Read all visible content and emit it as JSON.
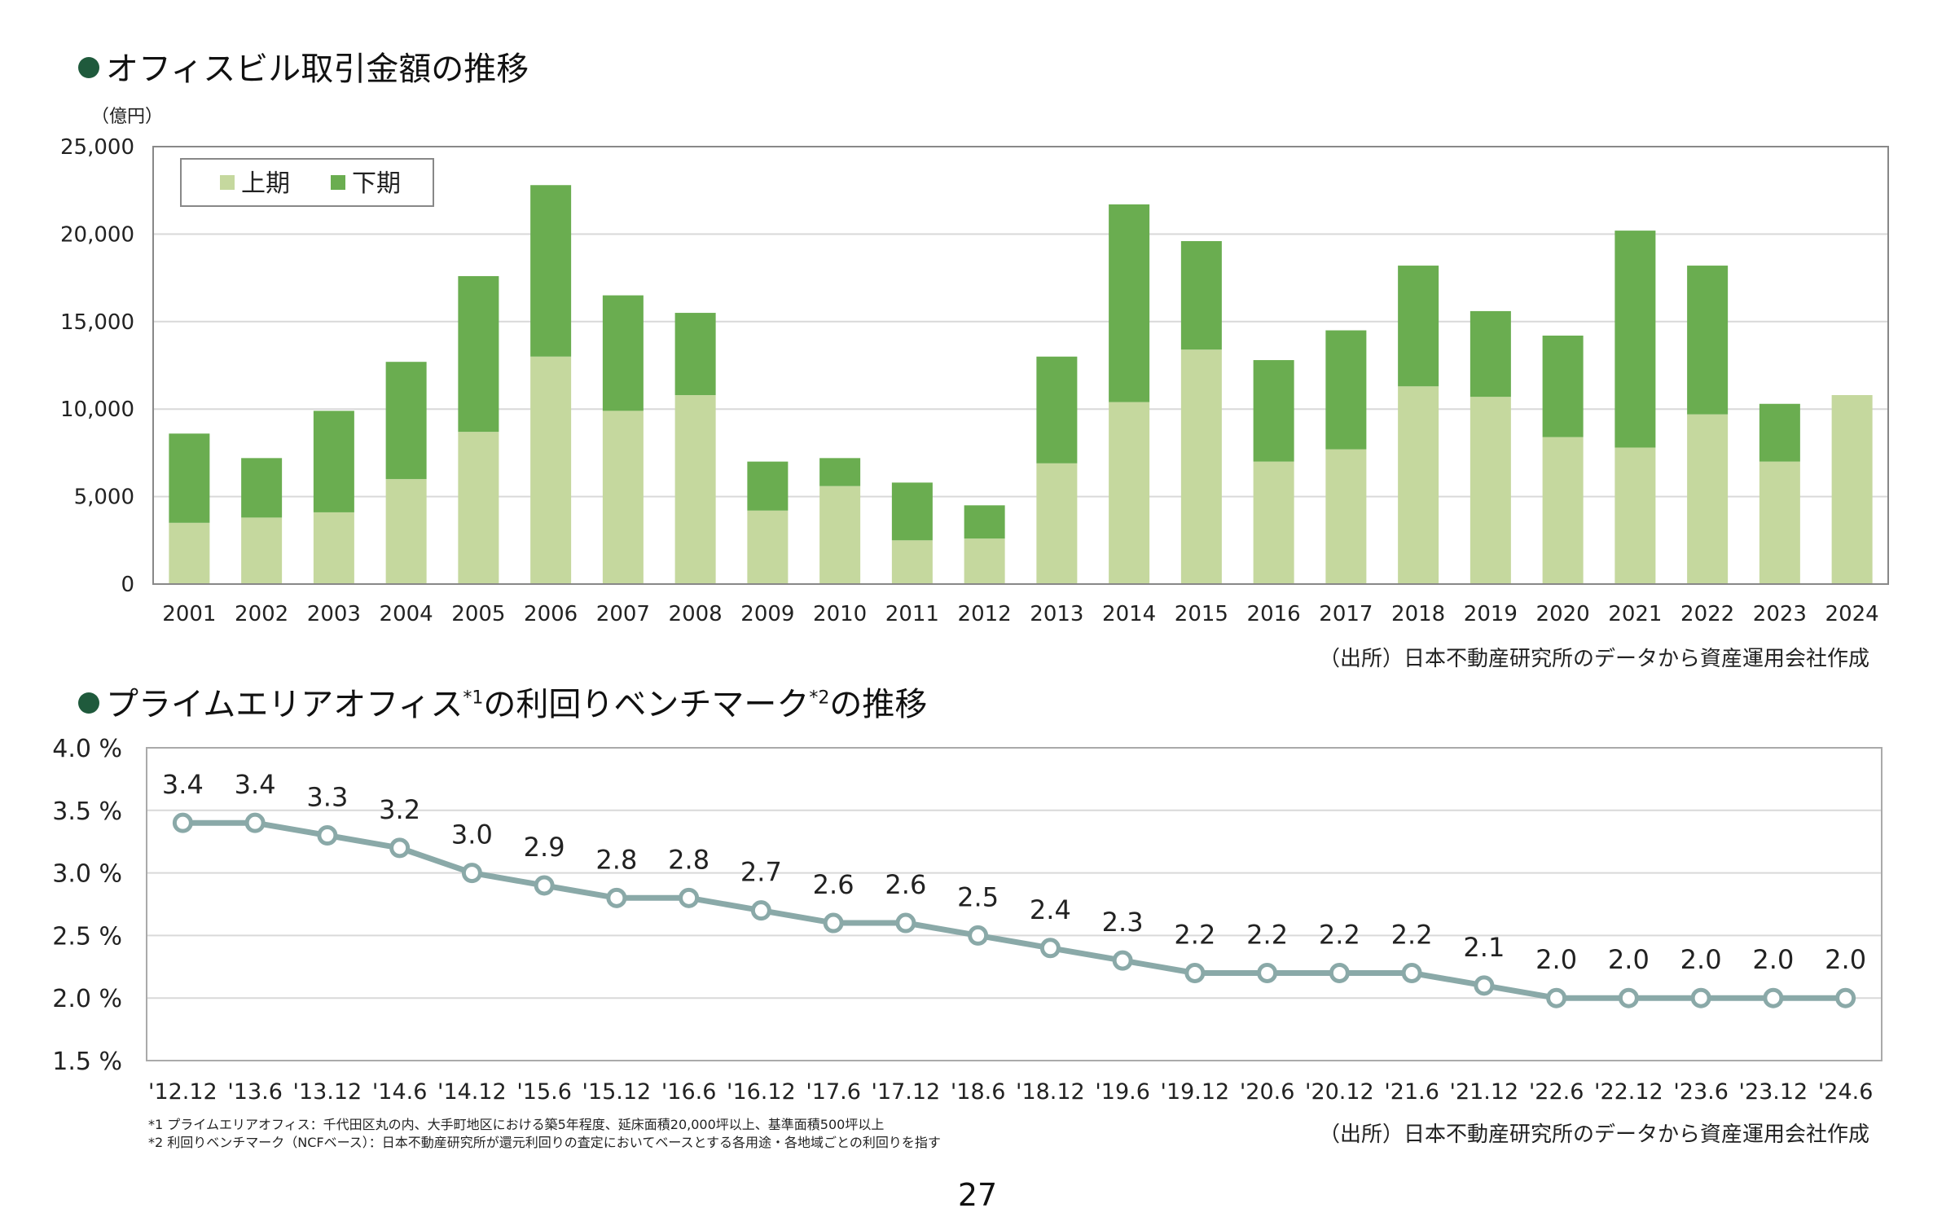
{
  "page_number": "27",
  "section1": {
    "title": "オフィスビル取引金額の推移",
    "unit_label": "（億円）",
    "source": "（出所）日本不動産研究所のデータから資産運用会社作成"
  },
  "section2": {
    "title_main": "プライムエリアオフィス",
    "title_sup1": "*1",
    "title_mid": "の利回りベンチマーク",
    "title_sup2": "*2",
    "title_end": "の推移",
    "source": "（出所）日本不動産研究所のデータから資産運用会社作成",
    "footnote1": "*1 プライムエリアオフィス：千代田区丸の内、大手町地区における築5年程度、延床面積20,000坪以上、基準面積500坪以上",
    "footnote2": "*2 利回りベンチマーク（NCFベース）：日本不動産研究所が還元利回りの査定においてベースとする各用途・各地域ごとの利回りを指す"
  },
  "colors": {
    "first_half": "#c5d89e",
    "second_half": "#6aad50",
    "line": "#8aa9a8",
    "title_dot": "#1f5a3c"
  },
  "chart_data": [
    {
      "type": "bar",
      "stacked": true,
      "categories": [
        "2001",
        "2002",
        "2003",
        "2004",
        "2005",
        "2006",
        "2007",
        "2008",
        "2009",
        "2010",
        "2011",
        "2012",
        "2013",
        "2014",
        "2015",
        "2016",
        "2017",
        "2018",
        "2019",
        "2020",
        "2021",
        "2022",
        "2023",
        "2024"
      ],
      "series": [
        {
          "name": "上期",
          "values": [
            3500,
            3800,
            4100,
            6000,
            8700,
            13000,
            9900,
            10800,
            4200,
            5600,
            2500,
            2600,
            6900,
            10400,
            13400,
            7000,
            7700,
            11300,
            10700,
            8400,
            7800,
            9700,
            7000,
            10800
          ]
        },
        {
          "name": "下期",
          "values": [
            5100,
            3400,
            5800,
            6700,
            8900,
            9800,
            6600,
            4700,
            2800,
            1600,
            3300,
            1900,
            6100,
            11300,
            6200,
            5800,
            6800,
            6900,
            4900,
            5800,
            12400,
            8500,
            3300,
            0
          ]
        }
      ],
      "ylim": [
        0,
        25000
      ],
      "yticks": [
        "0",
        "5,000",
        "10,000",
        "15,000",
        "20,000",
        "25,000"
      ],
      "legend_position": "top-left",
      "grid": true
    },
    {
      "type": "line",
      "categories": [
        "'12.12",
        "'13.6",
        "'13.12",
        "'14.6",
        "'14.12",
        "'15.6",
        "'15.12",
        "'16.6",
        "'16.12",
        "'17.6",
        "'17.12",
        "'18.6",
        "'18.12",
        "'19.6",
        "'19.12",
        "'20.6",
        "'20.12",
        "'21.6",
        "'21.12",
        "'22.6",
        "'22.12",
        "'23.6",
        "'23.12",
        "'24.6"
      ],
      "values": [
        3.4,
        3.4,
        3.3,
        3.2,
        3.0,
        2.9,
        2.8,
        2.8,
        2.7,
        2.6,
        2.6,
        2.5,
        2.4,
        2.3,
        2.2,
        2.2,
        2.2,
        2.2,
        2.1,
        2.0,
        2.0,
        2.0,
        2.0,
        2.0
      ],
      "data_labels": [
        "3.4",
        "3.4",
        "3.3",
        "3.2",
        "3.0",
        "2.9",
        "2.8",
        "2.8",
        "2.7",
        "2.6",
        "2.6",
        "2.5",
        "2.4",
        "2.3",
        "2.2",
        "2.2",
        "2.2",
        "2.2",
        "2.1",
        "2.0",
        "2.0",
        "2.0",
        "2.0",
        "2.0"
      ],
      "ylim": [
        1.5,
        4.0
      ],
      "yticks": [
        "1.5 %",
        "2.0 %",
        "2.5 %",
        "3.0 %",
        "3.5 %",
        "4.0 %"
      ],
      "grid": true
    }
  ]
}
